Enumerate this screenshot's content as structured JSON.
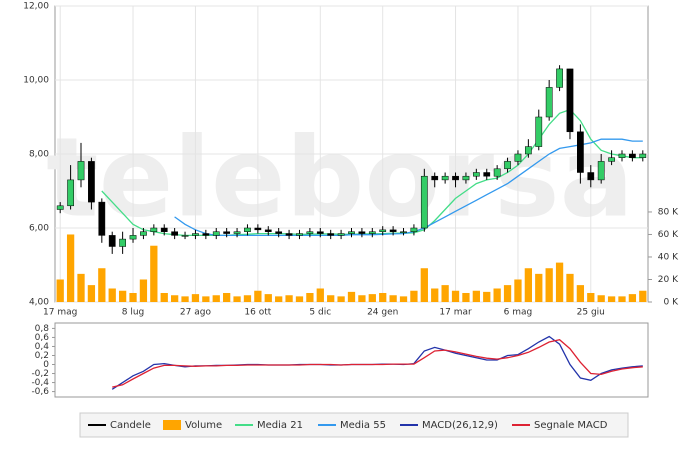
{
  "chart_data": [
    {
      "type": "candlestick",
      "watermark": "teleborsa",
      "grid": true,
      "xlim": [
        -0.5,
        56.5
      ],
      "xticks": [
        {
          "value": 0,
          "label": "17 mag"
        },
        {
          "value": 7,
          "label": "8 lug"
        },
        {
          "value": 13,
          "label": "27 ago"
        },
        {
          "value": 19,
          "label": "16 ott"
        },
        {
          "value": 25,
          "label": "5 dic"
        },
        {
          "value": 31,
          "label": "24 gen"
        },
        {
          "value": 38,
          "label": "17 mar"
        },
        {
          "value": 44,
          "label": "6 mag"
        },
        {
          "value": 51,
          "label": "25 giu"
        }
      ],
      "ylim": [
        4,
        12
      ],
      "yticks": [
        {
          "value": 4,
          "label": "4,00"
        },
        {
          "value": 6,
          "label": "6,00"
        },
        {
          "value": 8,
          "label": "8,00"
        },
        {
          "value": 10,
          "label": "10,00"
        },
        {
          "value": 12,
          "label": "12,00"
        }
      ],
      "y2lim": [
        0,
        263000
      ],
      "y2ticks": [
        {
          "value": 0,
          "label": "0 K"
        },
        {
          "value": 20000,
          "label": "20 K"
        },
        {
          "value": 40000,
          "label": "40 K"
        },
        {
          "value": 60000,
          "label": "60 K"
        },
        {
          "value": 80000,
          "label": "80 K"
        }
      ],
      "series": [
        {
          "name": "Candele",
          "color": "#000000",
          "up_color": "#33cc66",
          "open": [
            6.5,
            6.6,
            7.3,
            7.8,
            6.7,
            5.8,
            5.5,
            5.7,
            5.8,
            5.9,
            6.0,
            5.9,
            5.8,
            5.8,
            5.85,
            5.8,
            5.9,
            5.85,
            5.9,
            6.0,
            5.95,
            5.9,
            5.85,
            5.8,
            5.85,
            5.9,
            5.85,
            5.8,
            5.85,
            5.9,
            5.85,
            5.9,
            5.95,
            5.9,
            5.9,
            6.0,
            7.4,
            7.3,
            7.4,
            7.3,
            7.4,
            7.5,
            7.4,
            7.6,
            7.8,
            8.0,
            8.2,
            9.0,
            9.8,
            10.3,
            8.6,
            7.5,
            7.3,
            7.8,
            7.9,
            8.0,
            7.9
          ],
          "high": [
            6.7,
            7.7,
            8.3,
            7.9,
            6.8,
            5.9,
            5.9,
            6.0,
            6.0,
            6.1,
            6.1,
            6.0,
            5.9,
            5.95,
            5.95,
            6.0,
            6.0,
            6.0,
            6.1,
            6.1,
            6.05,
            6.0,
            5.95,
            5.95,
            6.0,
            6.0,
            5.95,
            5.95,
            6.0,
            6.0,
            6.0,
            6.05,
            6.05,
            6.0,
            6.1,
            7.6,
            7.5,
            7.5,
            7.5,
            7.5,
            7.6,
            7.6,
            7.7,
            7.9,
            8.1,
            8.4,
            9.2,
            10.0,
            10.4,
            10.3,
            8.8,
            7.7,
            8.0,
            8.1,
            8.1,
            8.1,
            8.1
          ],
          "low": [
            6.4,
            6.5,
            7.1,
            6.5,
            5.6,
            5.3,
            5.3,
            5.6,
            5.7,
            5.8,
            5.8,
            5.7,
            5.7,
            5.7,
            5.7,
            5.7,
            5.75,
            5.75,
            5.8,
            5.85,
            5.8,
            5.75,
            5.7,
            5.7,
            5.75,
            5.75,
            5.7,
            5.7,
            5.75,
            5.75,
            5.75,
            5.8,
            5.8,
            5.8,
            5.8,
            5.9,
            7.1,
            7.2,
            7.1,
            7.2,
            7.3,
            7.3,
            7.3,
            7.5,
            7.7,
            7.9,
            8.1,
            8.9,
            9.7,
            8.4,
            7.2,
            7.1,
            7.2,
            7.7,
            7.8,
            7.8,
            7.8
          ],
          "close": [
            6.6,
            7.3,
            7.8,
            6.7,
            5.8,
            5.5,
            5.7,
            5.8,
            5.9,
            6.0,
            5.9,
            5.8,
            5.8,
            5.85,
            5.8,
            5.9,
            5.85,
            5.9,
            6.0,
            5.95,
            5.9,
            5.85,
            5.8,
            5.85,
            5.9,
            5.85,
            5.8,
            5.85,
            5.9,
            5.85,
            5.9,
            5.95,
            5.9,
            5.9,
            6.0,
            7.4,
            7.3,
            7.4,
            7.3,
            7.4,
            7.5,
            7.4,
            7.6,
            7.8,
            8.0,
            8.2,
            9.0,
            9.8,
            10.3,
            8.6,
            7.5,
            7.3,
            7.8,
            7.9,
            8.0,
            7.9,
            8.0
          ]
        },
        {
          "name": "Volume",
          "color": "#ffa500",
          "axis": "y2",
          "values": [
            20000,
            60000,
            25000,
            15000,
            30000,
            12000,
            10000,
            8000,
            20000,
            50000,
            8000,
            6000,
            5000,
            7000,
            5000,
            6000,
            8000,
            5000,
            6000,
            10000,
            7000,
            5000,
            6000,
            5000,
            8000,
            12000,
            6000,
            5000,
            9000,
            6000,
            7000,
            8000,
            6000,
            5000,
            10000,
            30000,
            12000,
            15000,
            10000,
            8000,
            10000,
            9000,
            12000,
            15000,
            20000,
            30000,
            25000,
            30000,
            35000,
            25000,
            15000,
            8000,
            6000,
            5000,
            5000,
            7000,
            10000
          ]
        },
        {
          "name": "Media 21",
          "color": "#44dd88",
          "values": [
            null,
            null,
            null,
            null,
            7.0,
            6.7,
            6.4,
            6.1,
            5.95,
            5.9,
            5.85,
            5.82,
            5.8,
            5.8,
            5.8,
            5.8,
            5.8,
            5.82,
            5.83,
            5.85,
            5.85,
            5.85,
            5.84,
            5.83,
            5.83,
            5.84,
            5.84,
            5.83,
            5.83,
            5.84,
            5.84,
            5.85,
            5.86,
            5.86,
            5.87,
            5.95,
            6.2,
            6.5,
            6.8,
            7.0,
            7.2,
            7.3,
            7.35,
            7.5,
            7.7,
            8.0,
            8.4,
            8.8,
            9.1,
            9.2,
            8.9,
            8.4,
            8.1,
            8.0,
            7.95,
            7.9,
            7.9
          ]
        },
        {
          "name": "Media 55",
          "color": "#3399ee",
          "values": [
            null,
            null,
            null,
            null,
            null,
            null,
            null,
            null,
            null,
            null,
            null,
            6.3,
            6.1,
            5.95,
            5.85,
            5.8,
            5.8,
            5.8,
            5.8,
            5.8,
            5.8,
            5.8,
            5.8,
            5.8,
            5.8,
            5.8,
            5.8,
            5.8,
            5.82,
            5.82,
            5.82,
            5.83,
            5.84,
            5.85,
            5.9,
            6.0,
            6.15,
            6.3,
            6.45,
            6.6,
            6.75,
            6.9,
            7.05,
            7.2,
            7.4,
            7.6,
            7.8,
            8.0,
            8.15,
            8.2,
            8.25,
            8.3,
            8.4,
            8.4,
            8.4,
            8.35,
            8.35
          ]
        }
      ]
    },
    {
      "type": "line",
      "grid": true,
      "xlim": [
        -0.5,
        56.5
      ],
      "ylim": [
        -0.72,
        0.92
      ],
      "yticks": [
        {
          "value": 0.8,
          "label": "0,8"
        },
        {
          "value": 0.6,
          "label": "0,6"
        },
        {
          "value": 0.4,
          "label": "0,4"
        },
        {
          "value": 0.2,
          "label": "0,2"
        },
        0,
        {
          "value": -0.2,
          "label": "-0,2"
        },
        {
          "value": -0.4,
          "label": "-0,4"
        },
        {
          "value": -0.6,
          "label": "-0,6"
        }
      ],
      "series": [
        {
          "name": "MACD(26,12,9)",
          "color": "#2233aa",
          "values": [
            null,
            null,
            null,
            null,
            null,
            -0.55,
            -0.4,
            -0.25,
            -0.15,
            0.0,
            0.02,
            -0.02,
            -0.05,
            -0.03,
            -0.03,
            -0.02,
            -0.02,
            -0.01,
            0,
            0,
            -0.01,
            -0.01,
            -0.01,
            0,
            0,
            0,
            -0.01,
            -0.01,
            0,
            0,
            0,
            0.01,
            0.01,
            0,
            0.02,
            0.3,
            0.38,
            0.32,
            0.25,
            0.2,
            0.15,
            0.1,
            0.1,
            0.2,
            0.22,
            0.35,
            0.5,
            0.62,
            0.45,
            0.0,
            -0.3,
            -0.35,
            -0.2,
            -0.12,
            -0.08,
            -0.05,
            -0.03
          ]
        },
        {
          "name": "Segnale MACD",
          "color": "#dd2233",
          "values": [
            null,
            null,
            null,
            null,
            null,
            -0.5,
            -0.45,
            -0.32,
            -0.2,
            -0.08,
            -0.02,
            -0.02,
            -0.03,
            -0.04,
            -0.03,
            -0.03,
            -0.02,
            -0.02,
            -0.01,
            -0.01,
            -0.01,
            -0.01,
            -0.01,
            -0.01,
            0,
            0,
            0,
            -0.01,
            0,
            0,
            0,
            0,
            0.01,
            0.01,
            0.01,
            0.15,
            0.3,
            0.32,
            0.28,
            0.23,
            0.18,
            0.14,
            0.12,
            0.15,
            0.2,
            0.27,
            0.38,
            0.5,
            0.55,
            0.35,
            0.05,
            -0.2,
            -0.22,
            -0.15,
            -0.1,
            -0.07,
            -0.05
          ]
        }
      ]
    }
  ]
}
